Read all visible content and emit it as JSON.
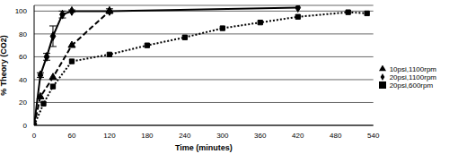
{
  "chart_data": {
    "type": "line",
    "xlabel": "Time (minutes)",
    "ylabel": "% Theory (CO2)",
    "xlim": [
      0,
      540
    ],
    "xticks": [
      0,
      60,
      120,
      180,
      240,
      300,
      360,
      420,
      480,
      540
    ],
    "ylim": [
      0,
      105
    ],
    "yticks": [
      0,
      20,
      40,
      60,
      80,
      100
    ],
    "grid": "y",
    "legend": "right",
    "series": [
      {
        "name": "20psi,1100rpm",
        "color": "#000000",
        "marker": "diamond",
        "line_style": "solid",
        "x": [
          0,
          10,
          20,
          30,
          45,
          60,
          120,
          420
        ],
        "values": [
          0,
          44,
          60,
          78,
          97,
          100,
          100,
          103
        ],
        "errors": [
          0,
          2,
          3,
          9,
          3,
          1,
          2,
          0
        ]
      },
      {
        "name": "20psi,600rpm",
        "color": "#000000",
        "marker": "square",
        "line_style": "dotted",
        "x": [
          0,
          15,
          30,
          60,
          120,
          180,
          240,
          300,
          360,
          420,
          500,
          530
        ],
        "values": [
          0,
          19,
          34,
          56,
          62,
          70,
          77,
          85,
          90,
          95,
          99,
          98
        ]
      },
      {
        "name": "10psi,1100rpm",
        "color": "#000000",
        "marker": "triangle",
        "line_style": "dashed",
        "x": [
          0,
          10,
          30,
          60,
          120
        ],
        "values": [
          0,
          25,
          42,
          70,
          100
        ]
      }
    ]
  }
}
